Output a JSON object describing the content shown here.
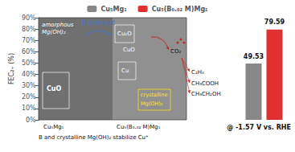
{
  "chart_data": {
    "type": "bar",
    "ylabel": "FEC₂₊ (%)",
    "categories": [
      null
    ],
    "series": [
      {
        "name": "Cu₅Mg₁",
        "color": "#888888",
        "values": [
          49.53
        ]
      },
      {
        "name": "Cu₅(B₀.₀₂ M)Mg₁",
        "color": "#e03030",
        "values": [
          79.59
        ]
      }
    ],
    "ylim": [
      0,
      90
    ],
    "yticks": [
      {
        "value": 0,
        "label": "0%"
      },
      {
        "value": 10,
        "label": "10%"
      },
      {
        "value": 20,
        "label": "20%"
      },
      {
        "value": 30,
        "label": "30%"
      },
      {
        "value": 40,
        "label": "40%"
      },
      {
        "value": 50,
        "label": "50%"
      },
      {
        "value": 60,
        "label": "60%"
      },
      {
        "value": 70,
        "label": "70%"
      },
      {
        "value": 80,
        "label": "80%"
      },
      {
        "value": 90,
        "label": "90%"
      }
    ],
    "data_labels": true,
    "grid": false,
    "legend": "top",
    "annotations": [
      "B element",
      "amorphous",
      "Mg(OH)₂",
      "CuO",
      "CuO",
      "Cu",
      "Cu₂O",
      "crystalline",
      "Mg(OH)₂",
      "CO₂",
      "C₂H₄",
      "CH₃COOH",
      "CH₃CH₂OH",
      "Cu₅Mg₁",
      "Cu₅(B₀.₀₂ M)Mg₁",
      "B and crystalline Mg(OH)₂ stabilize Cu⁺",
      "@ -1.57 V vs. RHE"
    ]
  }
}
